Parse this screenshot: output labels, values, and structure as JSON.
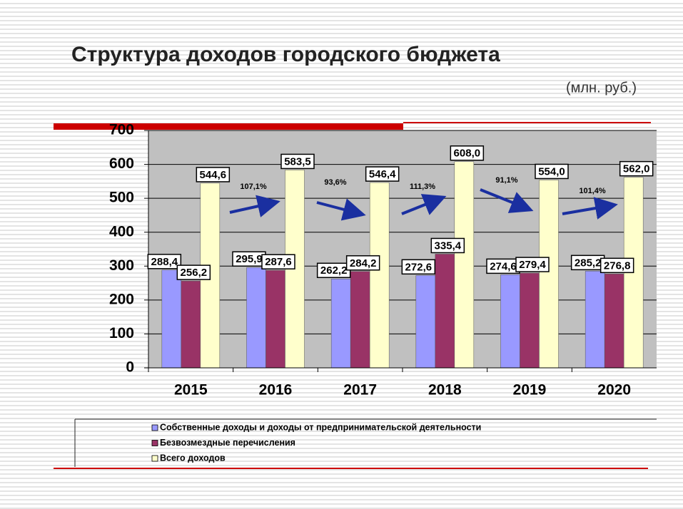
{
  "chart_data": {
    "type": "bar",
    "title": "Структура доходов городского бюджета",
    "subtitle": "(млн. руб.)",
    "categories": [
      "2015",
      "2016",
      "2017",
      "2018",
      "2019",
      "2020"
    ],
    "series": [
      {
        "name": "Собственные доходы и доходы от предпринимательской деятельности",
        "color": "#9999ff",
        "values": [
          288.4,
          295.9,
          262.2,
          272.6,
          274.6,
          285.2
        ],
        "value_labels": [
          "288,4",
          "295,9",
          "262,2",
          "272,6",
          "274,6",
          "285,2"
        ]
      },
      {
        "name": "Безвозмездные перечисления",
        "color": "#993366",
        "values": [
          256.2,
          287.6,
          284.2,
          335.4,
          279.4,
          276.8
        ],
        "value_labels": [
          "256,2",
          "287,6",
          "284,2",
          "335,4",
          "279,4",
          "276,8"
        ]
      },
      {
        "name": "Всего доходов",
        "color": "#ffffcc",
        "values": [
          544.6,
          583.5,
          546.4,
          608.0,
          554.0,
          562.0
        ],
        "value_labels": [
          "544,6",
          "583,5",
          "546,4",
          "608,0",
          "554,0",
          "562,0"
        ]
      }
    ],
    "annotations": [
      "107,1%",
      "93,6%",
      "111,3%",
      "91,1%",
      "101,4%"
    ],
    "ylim": [
      0,
      700
    ],
    "yticks": [
      0,
      100,
      200,
      300,
      400,
      500,
      600,
      700
    ],
    "grid": true
  }
}
